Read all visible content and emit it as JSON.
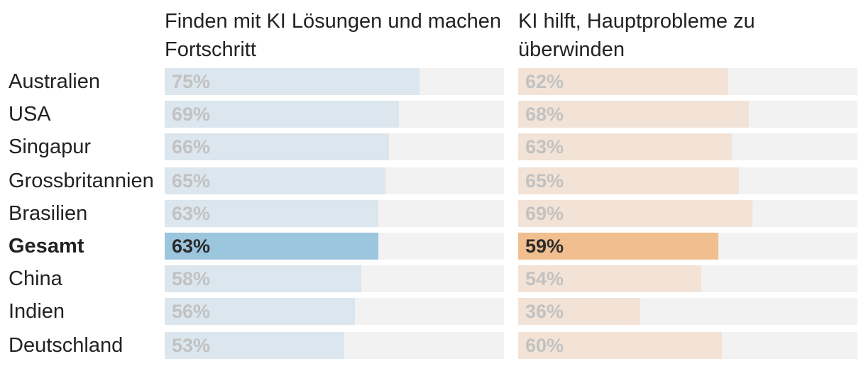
{
  "chart_data": {
    "type": "bar",
    "orientation": "horizontal",
    "categories": [
      "Australien",
      "USA",
      "Singapur",
      "Grossbritannien",
      "Brasilien",
      "Gesamt",
      "China",
      "Indien",
      "Deutschland"
    ],
    "highlight": "Gesamt",
    "xlim": [
      0,
      100
    ],
    "series": [
      {
        "name": "Finden mit KI Lösungen und machen Fortschritt",
        "values": [
          75,
          69,
          66,
          65,
          63,
          63,
          58,
          56,
          53
        ],
        "labels": [
          "75%",
          "69%",
          "66%",
          "65%",
          "63%",
          "63%",
          "58%",
          "56%",
          "53%"
        ],
        "color": "#dbe6ee",
        "highlight_color": "#9cc5de"
      },
      {
        "name": "KI hilft, Hauptprobleme zu überwinden",
        "values": [
          62,
          68,
          63,
          65,
          69,
          59,
          54,
          36,
          60
        ],
        "labels": [
          "62%",
          "68%",
          "63%",
          "65%",
          "69%",
          "59%",
          "54%",
          "36%",
          "60%"
        ],
        "color": "#f3e3d6",
        "highlight_color": "#f1bf8f"
      }
    ],
    "track_color": "#f2f2f2"
  }
}
